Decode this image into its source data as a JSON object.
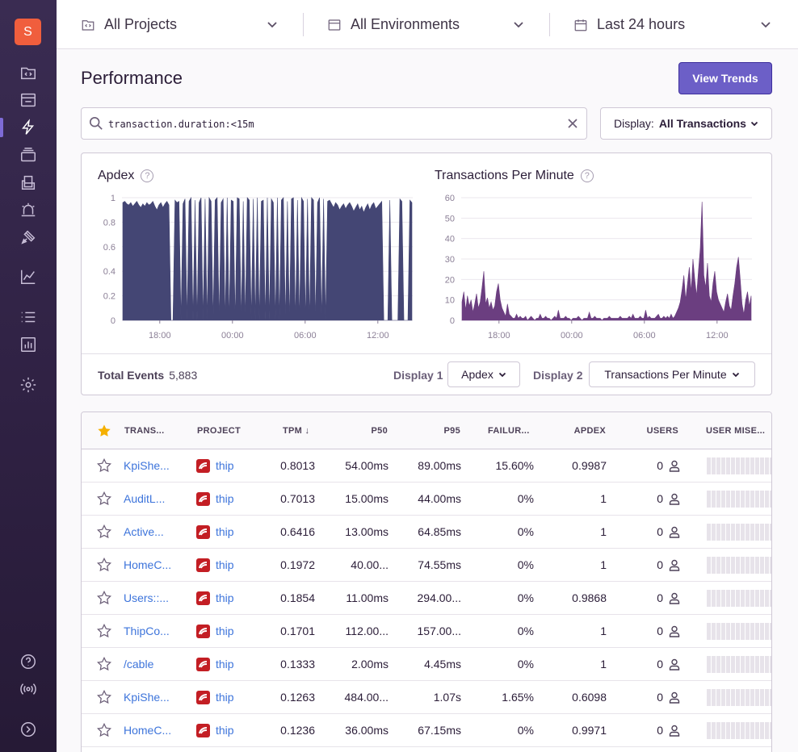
{
  "sidebar": {
    "org_initial": "S",
    "items": [
      {
        "name": "projects-icon"
      },
      {
        "name": "issues-icon"
      },
      {
        "name": "performance-icon"
      },
      {
        "name": "releases-icon"
      },
      {
        "name": "user-feedback-icon"
      },
      {
        "name": "alerts-icon"
      },
      {
        "name": "discover-icon"
      },
      {
        "name": "stats-icon"
      },
      {
        "name": "activity-icon"
      },
      {
        "name": "dashboards-icon"
      },
      {
        "name": "settings-icon"
      },
      {
        "name": "help-icon"
      },
      {
        "name": "broadcast-icon"
      },
      {
        "name": "collapse-icon"
      }
    ]
  },
  "header": {
    "projects": "All Projects",
    "environments": "All Environments",
    "period": "Last 24 hours"
  },
  "page": {
    "title": "Performance",
    "view_trends": "View Trends",
    "search_query": "transaction.duration:<15m",
    "display_label": "Display:",
    "display_value": "All Transactions"
  },
  "charts": {
    "footer": {
      "total_events_label": "Total Events",
      "total_events_value": "5,883",
      "display1_label": "Display 1",
      "display1_value": "Apdex",
      "display2_label": "Display 2",
      "display2_value": "Transactions Per Minute"
    }
  },
  "chart_data": [
    {
      "type": "area",
      "title": "Apdex",
      "x_ticks": [
        "18:00",
        "00:00",
        "06:00",
        "12:00"
      ],
      "y_ticks": [
        "0",
        "0.2",
        "0.4",
        "0.6",
        "0.8",
        "1"
      ],
      "ylim": [
        0,
        1
      ],
      "color": "#444674",
      "grid": true,
      "series": [
        {
          "values": [
            0.96,
            0.97,
            0.95,
            0.94,
            0.96,
            0.93,
            0.95,
            0.97,
            0.94,
            0.92,
            0.95,
            0.93,
            0.96,
            0.94,
            0.95,
            0.97,
            0.93,
            0.9,
            0.94,
            0.96,
            0.92,
            0.95,
            0.97,
            0.94,
            0,
            0,
            0.98,
            0.96,
            0.97,
            0,
            0.95,
            0.99,
            0,
            0.97,
            1,
            0,
            0.98,
            0,
            0.96,
            1,
            0,
            0.99,
            0,
            1,
            0.97,
            0,
            0.98,
            1,
            0,
            0.96,
            0.99,
            0,
            1,
            0,
            0.98,
            0.97,
            0,
            1,
            0.99,
            0,
            0.97,
            0,
            1,
            0.98,
            0,
            0.99,
            0,
            1,
            0,
            0.97,
            0.98,
            0,
            1,
            0,
            0.99,
            0.96,
            0,
            1,
            0,
            0.98,
            1,
            0,
            0.97,
            0,
            0.99,
            1,
            0,
            0.98,
            0,
            1,
            0.97,
            0,
            0.99,
            0,
            1,
            0.98,
            0,
            0.96,
            1,
            0,
            0.99,
            0,
            0.97,
            0.98,
            0.95,
            0.92,
            0.96,
            0.94,
            0.9,
            0.93,
            0.95,
            0.91,
            0.94,
            0.96,
            0.93,
            0.89,
            0.92,
            0.95,
            0.9,
            0.93,
            0.88,
            0.92,
            0.95,
            0.9,
            0.94,
            0.96,
            0.91,
            0.93,
            0.95,
            0.97,
            0,
            0,
            0,
            0.98,
            0,
            0,
            0,
            0,
            0.99,
            0.97,
            0,
            0,
            0,
            0.98,
            0.96
          ]
        }
      ]
    },
    {
      "type": "area",
      "title": "Transactions Per Minute",
      "x_ticks": [
        "18:00",
        "00:00",
        "06:00",
        "12:00"
      ],
      "y_ticks": [
        "0",
        "10",
        "20",
        "30",
        "40",
        "50",
        "60"
      ],
      "ylim": [
        0,
        60
      ],
      "color": "#6b3e80",
      "grid": true,
      "series": [
        {
          "values": [
            9,
            14,
            5,
            12,
            7,
            10,
            4,
            8,
            13,
            6,
            9,
            16,
            24,
            8,
            11,
            6,
            9,
            5,
            7,
            14,
            18,
            10,
            6,
            4,
            2,
            8,
            3,
            2,
            1,
            1,
            3,
            1,
            2,
            1,
            1,
            2,
            0,
            1,
            2,
            1,
            0,
            1,
            1,
            3,
            1,
            1,
            2,
            1,
            1,
            0,
            1,
            2,
            1,
            5,
            1,
            1,
            1,
            2,
            1,
            1,
            0,
            1,
            1,
            1,
            2,
            1,
            0,
            1,
            1,
            1,
            4,
            1,
            1,
            2,
            1,
            1,
            1,
            0,
            1,
            1,
            1,
            2,
            1,
            1,
            1,
            1,
            1,
            2,
            1,
            1,
            1,
            1,
            2,
            1,
            3,
            1,
            1,
            1,
            2,
            1,
            1,
            5,
            1,
            2,
            1,
            1,
            1,
            2,
            3,
            1,
            1,
            2,
            1,
            2,
            1,
            3,
            1,
            2,
            4,
            6,
            9,
            15,
            22,
            10,
            18,
            26,
            14,
            30,
            20,
            12,
            24,
            35,
            58,
            22,
            16,
            28,
            12,
            9,
            18,
            24,
            14,
            10,
            8,
            6,
            4,
            9,
            13,
            7,
            5,
            12,
            18,
            26,
            31,
            20,
            8,
            3,
            10,
            14,
            7,
            12
          ]
        }
      ]
    }
  ],
  "table": {
    "headers": [
      "TRANS...",
      "PROJECT",
      "TPM",
      "P50",
      "P95",
      "FAILUR...",
      "APDEX",
      "USERS",
      "USER MISE..."
    ],
    "rows": [
      {
        "transaction": "KpiShe...",
        "project": "thip",
        "tpm": "0.8013",
        "p50": "54.00ms",
        "p95": "89.00ms",
        "failure": "15.60%",
        "apdex": "0.9987",
        "users": "0"
      },
      {
        "transaction": "AuditL...",
        "project": "thip",
        "tpm": "0.7013",
        "p50": "15.00ms",
        "p95": "44.00ms",
        "failure": "0%",
        "apdex": "1",
        "users": "0"
      },
      {
        "transaction": "Active...",
        "project": "thip",
        "tpm": "0.6416",
        "p50": "13.00ms",
        "p95": "64.85ms",
        "failure": "0%",
        "apdex": "1",
        "users": "0"
      },
      {
        "transaction": "HomeC...",
        "project": "thip",
        "tpm": "0.1972",
        "p50": "40.00...",
        "p95": "74.55ms",
        "failure": "0%",
        "apdex": "1",
        "users": "0"
      },
      {
        "transaction": "Users::...",
        "project": "thip",
        "tpm": "0.1854",
        "p50": "11.00ms",
        "p95": "294.00...",
        "failure": "0%",
        "apdex": "0.9868",
        "users": "0"
      },
      {
        "transaction": "ThipCo...",
        "project": "thip",
        "tpm": "0.1701",
        "p50": "112.00...",
        "p95": "157.00...",
        "failure": "0%",
        "apdex": "1",
        "users": "0"
      },
      {
        "transaction": "/cable",
        "project": "thip",
        "tpm": "0.1333",
        "p50": "2.00ms",
        "p95": "4.45ms",
        "failure": "0%",
        "apdex": "1",
        "users": "0"
      },
      {
        "transaction": "KpiShe...",
        "project": "thip",
        "tpm": "0.1263",
        "p50": "484.00...",
        "p95": "1.07s",
        "failure": "1.65%",
        "apdex": "0.6098",
        "users": "0"
      },
      {
        "transaction": "HomeC...",
        "project": "thip",
        "tpm": "0.1236",
        "p50": "36.00ms",
        "p95": "67.15ms",
        "failure": "0%",
        "apdex": "0.9971",
        "users": "0"
      }
    ]
  }
}
